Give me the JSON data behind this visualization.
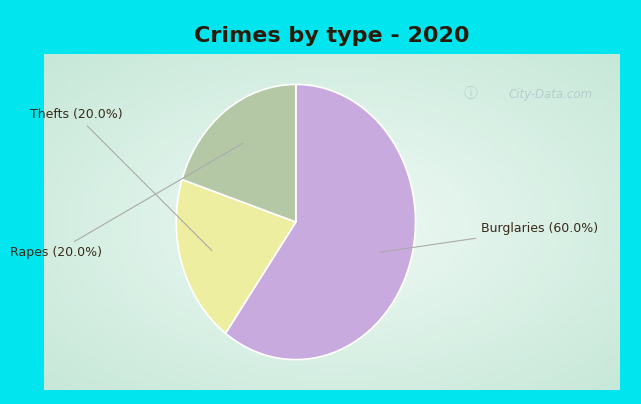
{
  "title": "Crimes by type - 2020",
  "slices": [
    {
      "label": "Burglaries (60.0%)",
      "value": 60.0,
      "color": "#C9AADF"
    },
    {
      "label": "Thefts (20.0%)",
      "value": 20.0,
      "color": "#EEEEA0"
    },
    {
      "label": "Rapes (20.0%)",
      "value": 20.0,
      "color": "#B5C8A5"
    }
  ],
  "title_fontsize": 16,
  "title_fontweight": "bold",
  "title_color": "#2a1a0a",
  "border_color": "#00E5EE",
  "label_fontsize": 9,
  "label_color": "#3a2a1a",
  "watermark": "City-Data.com",
  "startangle": 90,
  "border_thickness": 12
}
